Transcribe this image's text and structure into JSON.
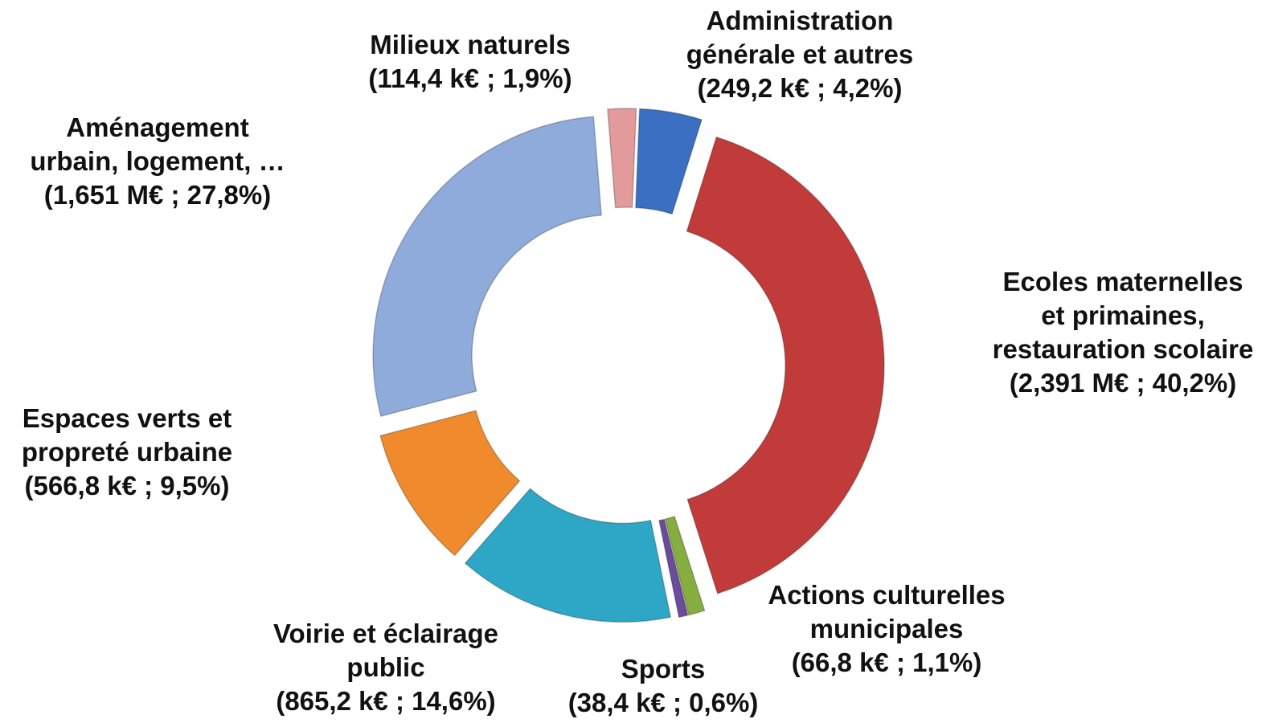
{
  "chart_data": {
    "type": "donut",
    "categories": [
      "Administration générale et autres",
      "Ecoles maternelles et primaines, restauration scolaire",
      "Actions culturelles municipales",
      "Sports",
      "Voirie et éclairage public",
      "Espaces verts et propreté urbaine",
      "Aménagement urbain, logement, …",
      "Milieux naturels"
    ],
    "values": [
      4.2,
      40.2,
      1.1,
      0.6,
      14.6,
      9.5,
      27.8,
      1.9
    ],
    "value_labels": [
      "(249,2 k€ ; 4,2%)",
      "(2,391 M€ ; 40,2%)",
      "(66,8 k€ ; 1,1%)",
      "(38,4 k€ ; 0,6%)",
      "(865,2 k€ ; 14,6%)",
      "(566,8 k€ ; 9,5%)",
      "(1,651 M€ ; 27,8%)",
      "(114,4 k€ ; 1,9%)"
    ],
    "colors": [
      "#3b6fc2",
      "#c23b3b",
      "#86ad3f",
      "#6a4b9c",
      "#2ea7c6",
      "#ef8a2d",
      "#8eabdc",
      "#e39a9a"
    ]
  }
}
